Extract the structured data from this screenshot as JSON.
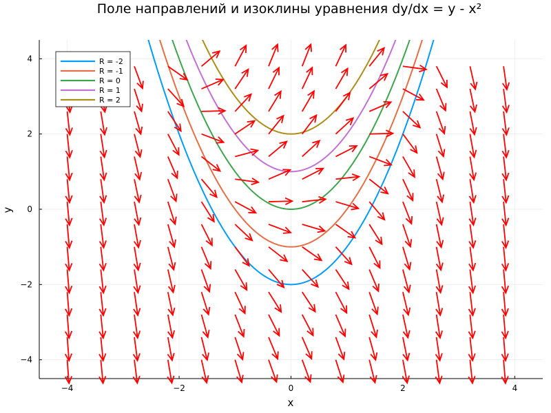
{
  "chart_data": {
    "type": "line",
    "title": "Поле направлений и изоклины уравнения dy/dx = y - x²",
    "xlabel": "x",
    "ylabel": "y",
    "xlim": [
      -4.5,
      4.5
    ],
    "ylim": [
      -4.5,
      4.5
    ],
    "x_ticks": [
      -4,
      -2,
      0,
      2,
      4
    ],
    "y_ticks": [
      -4,
      -2,
      0,
      2,
      4
    ],
    "x_tick_labels": [
      "−4",
      "−2",
      "0",
      "2",
      "4"
    ],
    "y_tick_labels": [
      "−4",
      "−2",
      "0",
      "2",
      "4"
    ],
    "grid": true,
    "legend_position": "top-left",
    "series": [
      {
        "name": "R = -2",
        "color": "#009af9",
        "formula": "y = x^2 - 2"
      },
      {
        "name": "R = -1",
        "color": "#e26f46",
        "formula": "y = x^2 - 1"
      },
      {
        "name": "R = 0",
        "color": "#3ea44e",
        "formula": "y = x^2"
      },
      {
        "name": "R = 1",
        "color": "#c271d2",
        "formula": "y = x^2 + 1"
      },
      {
        "name": "R = 2",
        "color": "#ac8d18",
        "formula": "y = x^2 + 2"
      }
    ],
    "direction_field": {
      "equation": "dy/dx = y - x^2",
      "color": "#ff0000",
      "x_values": [
        -4,
        -3.4,
        -2.8,
        -2.2,
        -1.6,
        -1,
        -0.4,
        0.2,
        0.8,
        1.4,
        2,
        2.6,
        3.2,
        3.8
      ],
      "y_values": [
        -4,
        -3.4,
        -2.8,
        -2.2,
        -1.6,
        -1,
        -0.4,
        0.2,
        0.8,
        1.4,
        2,
        2.6,
        3.2,
        3.8
      ]
    }
  }
}
